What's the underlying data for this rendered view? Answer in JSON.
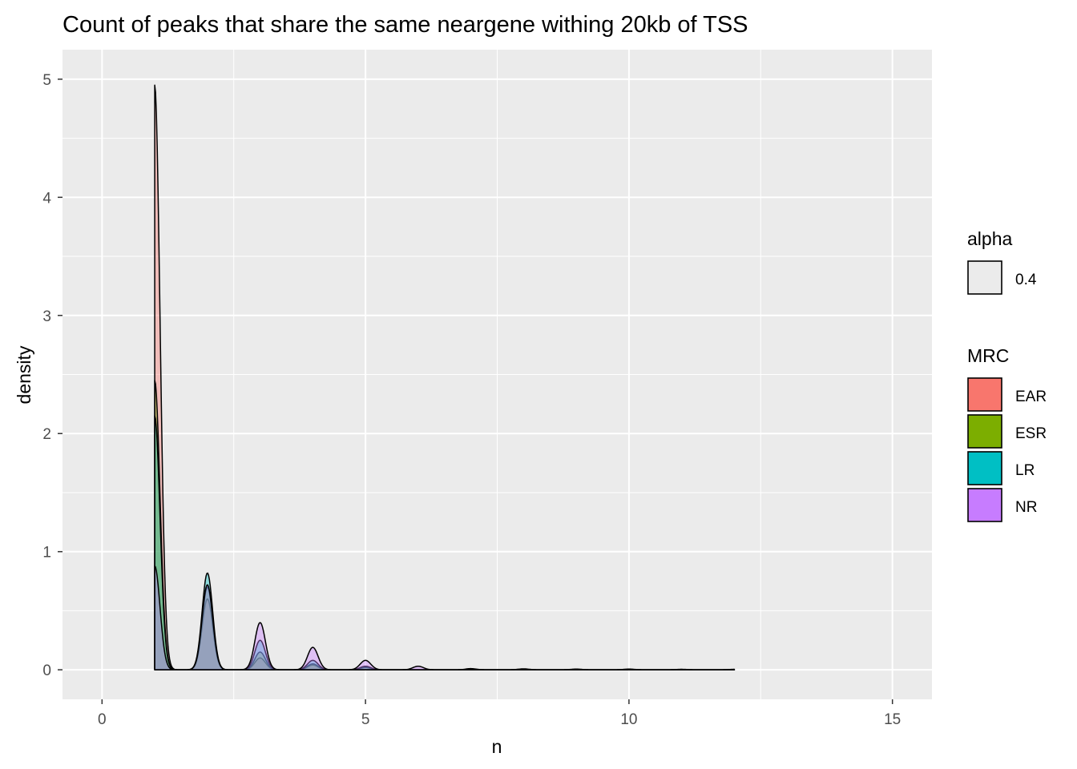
{
  "chart_data": {
    "type": "area",
    "title": "Count of peaks that share the same neargene withing 20kb of TSS",
    "xlabel": "n",
    "ylabel": "density",
    "xlim": [
      -0.75,
      15.75
    ],
    "ylim": [
      -0.25,
      5.25
    ],
    "x_ticks": [
      0,
      5,
      10,
      15
    ],
    "y_ticks": [
      0,
      1,
      2,
      3,
      4,
      5
    ],
    "x_tick_labels": [
      "0",
      "5",
      "10",
      "15"
    ],
    "y_tick_labels": [
      "0",
      "1",
      "2",
      "3",
      "4",
      "5"
    ],
    "grid": true,
    "panel_background": "#ebebeb",
    "legend_position": "right",
    "legends": {
      "alpha": {
        "title": "alpha",
        "entries": [
          {
            "label": "0.4",
            "color": "#ebebeb"
          }
        ]
      },
      "fill": {
        "title": "MRC",
        "entries": [
          {
            "label": "EAR",
            "color": "#F8766D"
          },
          {
            "label": "ESR",
            "color": "#7CAE00"
          },
          {
            "label": "LR",
            "color": "#00BFC4"
          },
          {
            "label": "NR",
            "color": "#C77CFF"
          }
        ]
      }
    },
    "fill_alpha": 0.4,
    "series": [
      {
        "name": "EAR",
        "color": "#F8766D",
        "x_range": [
          1,
          12
        ],
        "peaks": [
          [
            1,
            4.95
          ],
          [
            2,
            0.6
          ],
          [
            3,
            0.1
          ],
          [
            4,
            0.04
          ],
          [
            5,
            0.02
          ]
        ]
      },
      {
        "name": "ESR",
        "color": "#7CAE00",
        "x_range": [
          1,
          12
        ],
        "peaks": [
          [
            1,
            2.45
          ],
          [
            2,
            0.7
          ],
          [
            3,
            0.15
          ],
          [
            4,
            0.05
          ],
          [
            5,
            0.02
          ]
        ]
      },
      {
        "name": "LR",
        "color": "#00BFC4",
        "x_range": [
          1,
          12
        ],
        "peaks": [
          [
            1,
            2.15
          ],
          [
            2,
            0.82
          ],
          [
            3,
            0.25
          ],
          [
            4,
            0.08
          ],
          [
            5,
            0.03
          ]
        ]
      },
      {
        "name": "NR",
        "color": "#C77CFF",
        "x_range": [
          1,
          12
        ],
        "peaks": [
          [
            1,
            0.88
          ],
          [
            2,
            0.72
          ],
          [
            3,
            0.4
          ],
          [
            4,
            0.19
          ],
          [
            5,
            0.08
          ],
          [
            6,
            0.03
          ],
          [
            7,
            0.01
          ],
          [
            8,
            0.008
          ],
          [
            9,
            0.006
          ],
          [
            10,
            0.006
          ],
          [
            11,
            0.004
          ],
          [
            12,
            0.004
          ]
        ]
      }
    ]
  }
}
